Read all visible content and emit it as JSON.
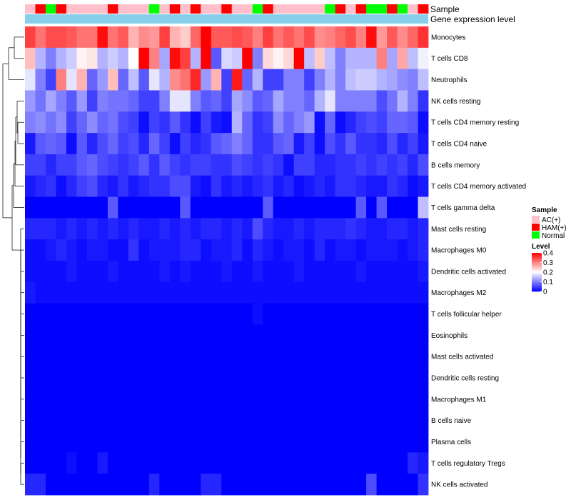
{
  "chart_data": {
    "type": "heatmap",
    "title": "",
    "annotation_tracks": [
      "Sample",
      "Gene expression level"
    ],
    "rows": [
      "Monocytes",
      "T cells CD8",
      "Neutrophils",
      "NK cells resting",
      "T cells CD4 memory resting",
      "T cells CD4 naive",
      "B cells memory",
      "T cells CD4 memory activated",
      "T cells gamma delta",
      "Mast cells resting",
      "Macrophages M0",
      "Dendritic cells activated",
      "Macrophages M2",
      "T cells follicular helper",
      "Eosinophils",
      "Mast cells activated",
      "Dendritic cells resting",
      "Macrophages M1",
      "B cells naive",
      "Plasma cells",
      "T cells regulatory  Tregs",
      "NK cells activated"
    ],
    "sample_groups": [
      "AC(+)",
      "HAM(+)",
      "Normal",
      "HAM(+)",
      "AC(+)",
      "AC(+)",
      "AC(+)",
      "AC(+)",
      "HAM(+)",
      "AC(+)",
      "AC(+)",
      "AC(+)",
      "Normal",
      "AC(+)",
      "HAM(+)",
      "AC(+)",
      "HAM(+)",
      "AC(+)",
      "AC(+)",
      "HAM(+)",
      "AC(+)",
      "AC(+)",
      "Normal",
      "HAM(+)",
      "AC(+)",
      "AC(+)",
      "AC(+)",
      "AC(+)",
      "AC(+)",
      "Normal",
      "HAM(+)",
      "AC(+)",
      "HAM(+)",
      "Normal",
      "Normal",
      "HAM(+)",
      "Normal",
      "AC(+)",
      "HAM(+)"
    ],
    "values": [
      [
        0.35,
        0.31,
        0.34,
        0.34,
        0.33,
        0.31,
        0.31,
        0.39,
        0.31,
        0.33,
        0.26,
        0.29,
        0.28,
        0.35,
        0.26,
        0.24,
        0.32,
        0.4,
        0.33,
        0.33,
        0.34,
        0.33,
        0.3,
        0.35,
        0.31,
        0.33,
        0.31,
        0.34,
        0.29,
        0.3,
        0.32,
        0.34,
        0.3,
        0.39,
        0.28,
        0.33,
        0.29,
        0.32,
        0.36
      ],
      [
        0.25,
        0.14,
        0.1,
        0.14,
        0.16,
        0.21,
        0.22,
        0.14,
        0.16,
        0.14,
        0.2,
        0.4,
        0.3,
        0.13,
        0.39,
        0.35,
        0.14,
        0.4,
        0.07,
        0.17,
        0.16,
        0.4,
        0.1,
        0.23,
        0.21,
        0.23,
        0.4,
        0.15,
        0.24,
        0.15,
        0.1,
        0.14,
        0.14,
        0.14,
        0.3,
        0.13,
        0.27,
        0.15,
        0.19
      ],
      [
        0.18,
        0.1,
        0.05,
        0.3,
        0.18,
        0.26,
        0.08,
        0.12,
        0.25,
        0.08,
        0.15,
        0.07,
        0.18,
        0.14,
        0.29,
        0.31,
        0.37,
        0.12,
        0.26,
        0.05,
        0.38,
        0.08,
        0.14,
        0.05,
        0.05,
        0.1,
        0.1,
        0.05,
        0.1,
        0.14,
        0.1,
        0.15,
        0.16,
        0.16,
        0.14,
        0.13,
        0.11,
        0.1,
        0.15
      ],
      [
        0.12,
        0.09,
        0.13,
        0.1,
        0.07,
        0.12,
        0.05,
        0.1,
        0.09,
        0.09,
        0.08,
        0.05,
        0.05,
        0.1,
        0.18,
        0.18,
        0.1,
        0.07,
        0.08,
        0.05,
        0.13,
        0.11,
        0.07,
        0.08,
        0.13,
        0.1,
        0.1,
        0.08,
        0.14,
        0.18,
        0.1,
        0.1,
        0.1,
        0.1,
        0.06,
        0.09,
        0.14,
        0.1,
        0.04
      ],
      [
        0.1,
        0.11,
        0.09,
        0.11,
        0.05,
        0.08,
        0.11,
        0.08,
        0.09,
        0.06,
        0.05,
        0.01,
        0.05,
        0.04,
        0.07,
        0.04,
        0.01,
        0.05,
        0.02,
        0.01,
        0.14,
        0.08,
        0.04,
        0.05,
        0.11,
        0.08,
        0.1,
        0.12,
        0.01,
        0.08,
        0.01,
        0.03,
        0.05,
        0.06,
        0.05,
        0.08,
        0.08,
        0.07,
        0.01
      ],
      [
        0.02,
        0.07,
        0.08,
        0.07,
        0.01,
        0.07,
        0.03,
        0.06,
        0.08,
        0.05,
        0.06,
        0.03,
        0.08,
        0.05,
        0.01,
        0.05,
        0.03,
        0.04,
        0.07,
        0.08,
        0.1,
        0.08,
        0.04,
        0.04,
        0.07,
        0.08,
        0.02,
        0.05,
        0.01,
        0.06,
        0.04,
        0.07,
        0.04,
        0.04,
        0.03,
        0.06,
        0.03,
        0.05,
        0.02
      ],
      [
        0.05,
        0.05,
        0.03,
        0.05,
        0.05,
        0.07,
        0.08,
        0.06,
        0.05,
        0.04,
        0.05,
        0.07,
        0.04,
        0.07,
        0.05,
        0.04,
        0.05,
        0.05,
        0.04,
        0.04,
        0.06,
        0.05,
        0.04,
        0.05,
        0.04,
        0.01,
        0.05,
        0.05,
        0.03,
        0.03,
        0.04,
        0.04,
        0.05,
        0.04,
        0.05,
        0.04,
        0.05,
        0.03,
        0.06
      ],
      [
        0.02,
        0.03,
        0.04,
        0.01,
        0.03,
        0.05,
        0.06,
        0.03,
        0.02,
        0.04,
        0.02,
        0.03,
        0.04,
        0.04,
        0.06,
        0.06,
        0.02,
        0.01,
        0.04,
        0.02,
        0.03,
        0.02,
        0.03,
        0.04,
        0.02,
        0.03,
        0.01,
        0.02,
        0.03,
        0.02,
        0.04,
        0.04,
        0.03,
        0.02,
        0.02,
        0.04,
        0.03,
        0.01,
        0.02
      ],
      [
        0.0,
        0.0,
        0.0,
        0.0,
        0.0,
        0.0,
        0.0,
        0.0,
        0.07,
        0.0,
        0.0,
        0.0,
        0.0,
        0.0,
        0.0,
        0.07,
        0.0,
        0.0,
        0.0,
        0.0,
        0.0,
        0.0,
        0.0,
        0.07,
        0.0,
        0.0,
        0.0,
        0.0,
        0.0,
        0.0,
        0.0,
        0.0,
        0.07,
        0.0,
        0.07,
        0.0,
        0.0,
        0.0,
        0.15
      ],
      [
        0.03,
        0.03,
        0.03,
        0.02,
        0.03,
        0.02,
        0.03,
        0.02,
        0.03,
        0.02,
        0.03,
        0.02,
        0.02,
        0.03,
        0.02,
        0.03,
        0.02,
        0.03,
        0.03,
        0.02,
        0.03,
        0.02,
        0.06,
        0.03,
        0.02,
        0.02,
        0.03,
        0.02,
        0.03,
        0.03,
        0.03,
        0.04,
        0.03,
        0.02,
        0.02,
        0.03,
        0.03,
        0.02,
        0.03
      ],
      [
        0.01,
        0.01,
        0.02,
        0.03,
        0.02,
        0.01,
        0.02,
        0.02,
        0.01,
        0.01,
        0.04,
        0.01,
        0.02,
        0.02,
        0.02,
        0.03,
        0.03,
        0.01,
        0.02,
        0.02,
        0.03,
        0.01,
        0.03,
        0.02,
        0.01,
        0.02,
        0.02,
        0.01,
        0.03,
        0.01,
        0.02,
        0.02,
        0.01,
        0.02,
        0.02,
        0.02,
        0.01,
        0.02,
        0.03
      ],
      [
        0.01,
        0.01,
        0.01,
        0.01,
        0.02,
        0.01,
        0.01,
        0.01,
        0.02,
        0.01,
        0.01,
        0.01,
        0.01,
        0.02,
        0.01,
        0.02,
        0.01,
        0.01,
        0.01,
        0.02,
        0.01,
        0.01,
        0.02,
        0.01,
        0.01,
        0.01,
        0.02,
        0.01,
        0.01,
        0.01,
        0.01,
        0.01,
        0.02,
        0.01,
        0.01,
        0.01,
        0.01,
        0.01,
        0.02
      ],
      [
        0.02,
        0.01,
        0.01,
        0.01,
        0.01,
        0.01,
        0.01,
        0.01,
        0.01,
        0.01,
        0.01,
        0.01,
        0.01,
        0.01,
        0.01,
        0.01,
        0.01,
        0.01,
        0.01,
        0.01,
        0.01,
        0.01,
        0.01,
        0.01,
        0.01,
        0.01,
        0.01,
        0.01,
        0.01,
        0.01,
        0.01,
        0.01,
        0.01,
        0.01,
        0.01,
        0.01,
        0.01,
        0.01,
        0.01
      ],
      [
        0.0,
        0.0,
        0.0,
        0.0,
        0.0,
        0.0,
        0.0,
        0.0,
        0.0,
        0.0,
        0.0,
        0.0,
        0.0,
        0.0,
        0.0,
        0.0,
        0.0,
        0.0,
        0.0,
        0.0,
        0.0,
        0.0,
        0.01,
        0.0,
        0.0,
        0.0,
        0.0,
        0.0,
        0.0,
        0.0,
        0.0,
        0.0,
        0.0,
        0.0,
        0.0,
        0.0,
        0.0,
        0.0,
        0.0
      ],
      [
        0.0,
        0.0,
        0.0,
        0.0,
        0.0,
        0.0,
        0.0,
        0.0,
        0.0,
        0.0,
        0.0,
        0.0,
        0.0,
        0.0,
        0.0,
        0.0,
        0.0,
        0.0,
        0.0,
        0.0,
        0.0,
        0.0,
        0.0,
        0.0,
        0.0,
        0.0,
        0.0,
        0.0,
        0.0,
        0.0,
        0.0,
        0.0,
        0.0,
        0.0,
        0.0,
        0.0,
        0.0,
        0.0,
        0.0
      ],
      [
        0.0,
        0.0,
        0.0,
        0.0,
        0.0,
        0.0,
        0.0,
        0.0,
        0.0,
        0.0,
        0.0,
        0.0,
        0.0,
        0.0,
        0.0,
        0.0,
        0.0,
        0.0,
        0.0,
        0.0,
        0.0,
        0.0,
        0.0,
        0.0,
        0.0,
        0.0,
        0.0,
        0.0,
        0.0,
        0.0,
        0.0,
        0.0,
        0.0,
        0.0,
        0.0,
        0.0,
        0.0,
        0.0,
        0.0
      ],
      [
        0.0,
        0.0,
        0.0,
        0.0,
        0.0,
        0.0,
        0.0,
        0.0,
        0.0,
        0.0,
        0.0,
        0.0,
        0.0,
        0.0,
        0.0,
        0.0,
        0.0,
        0.0,
        0.0,
        0.0,
        0.0,
        0.0,
        0.0,
        0.0,
        0.0,
        0.0,
        0.0,
        0.0,
        0.0,
        0.0,
        0.0,
        0.0,
        0.0,
        0.0,
        0.0,
        0.0,
        0.0,
        0.0,
        0.0
      ],
      [
        0.0,
        0.0,
        0.0,
        0.0,
        0.0,
        0.0,
        0.0,
        0.0,
        0.0,
        0.0,
        0.0,
        0.0,
        0.0,
        0.0,
        0.0,
        0.0,
        0.0,
        0.0,
        0.0,
        0.0,
        0.0,
        0.0,
        0.0,
        0.0,
        0.0,
        0.0,
        0.0,
        0.0,
        0.0,
        0.0,
        0.0,
        0.0,
        0.0,
        0.0,
        0.0,
        0.0,
        0.0,
        0.0,
        0.0
      ],
      [
        0.0,
        0.0,
        0.0,
        0.0,
        0.0,
        0.0,
        0.0,
        0.0,
        0.0,
        0.0,
        0.0,
        0.0,
        0.0,
        0.0,
        0.0,
        0.0,
        0.0,
        0.0,
        0.0,
        0.0,
        0.0,
        0.0,
        0.0,
        0.0,
        0.0,
        0.0,
        0.0,
        0.0,
        0.0,
        0.0,
        0.0,
        0.0,
        0.0,
        0.0,
        0.0,
        0.0,
        0.0,
        0.0,
        0.0
      ],
      [
        0.0,
        0.0,
        0.0,
        0.0,
        0.0,
        0.0,
        0.0,
        0.0,
        0.0,
        0.0,
        0.0,
        0.0,
        0.0,
        0.0,
        0.0,
        0.0,
        0.0,
        0.0,
        0.0,
        0.0,
        0.0,
        0.0,
        0.0,
        0.0,
        0.0,
        0.0,
        0.0,
        0.0,
        0.0,
        0.0,
        0.0,
        0.0,
        0.0,
        0.0,
        0.0,
        0.0,
        0.0,
        0.0,
        0.0
      ],
      [
        0.0,
        0.0,
        0.0,
        0.0,
        0.01,
        0.0,
        0.0,
        0.02,
        0.0,
        0.0,
        0.0,
        0.0,
        0.0,
        0.0,
        0.0,
        0.0,
        0.0,
        0.0,
        0.0,
        0.0,
        0.0,
        0.0,
        0.0,
        0.0,
        0.0,
        0.0,
        0.0,
        0.0,
        0.0,
        0.0,
        0.0,
        0.0,
        0.0,
        0.0,
        0.0,
        0.0,
        0.0,
        0.03,
        0.02
      ],
      [
        0.03,
        0.03,
        0.0,
        0.0,
        0.0,
        0.0,
        0.0,
        0.0,
        0.0,
        0.0,
        0.0,
        0.0,
        0.03,
        0.0,
        0.0,
        0.0,
        0.0,
        0.03,
        0.03,
        0.0,
        0.0,
        0.0,
        0.0,
        0.0,
        0.0,
        0.0,
        0.0,
        0.0,
        0.0,
        0.0,
        0.0,
        0.0,
        0.0,
        0.06,
        0.0,
        0.0,
        0.0,
        0.0,
        0.04
      ]
    ],
    "legend": {
      "sample": {
        "title": "Sample",
        "labels": [
          "AC(+)",
          "HAM(+)",
          "Normal"
        ],
        "colors": [
          "#ffc0cb",
          "#ff0000",
          "#00ff00"
        ]
      },
      "level": {
        "title": "Level",
        "ticks": [
          "0.4",
          "0.3",
          "0.2",
          "0.1",
          "0"
        ],
        "tick_values": [
          0.4,
          0.3,
          0.2,
          0.1,
          0
        ],
        "range": [
          0,
          0.4
        ],
        "colors": [
          "#0000ff",
          "#ffffff",
          "#ff0000"
        ]
      }
    },
    "expression_track_color": "#87ceeb"
  }
}
